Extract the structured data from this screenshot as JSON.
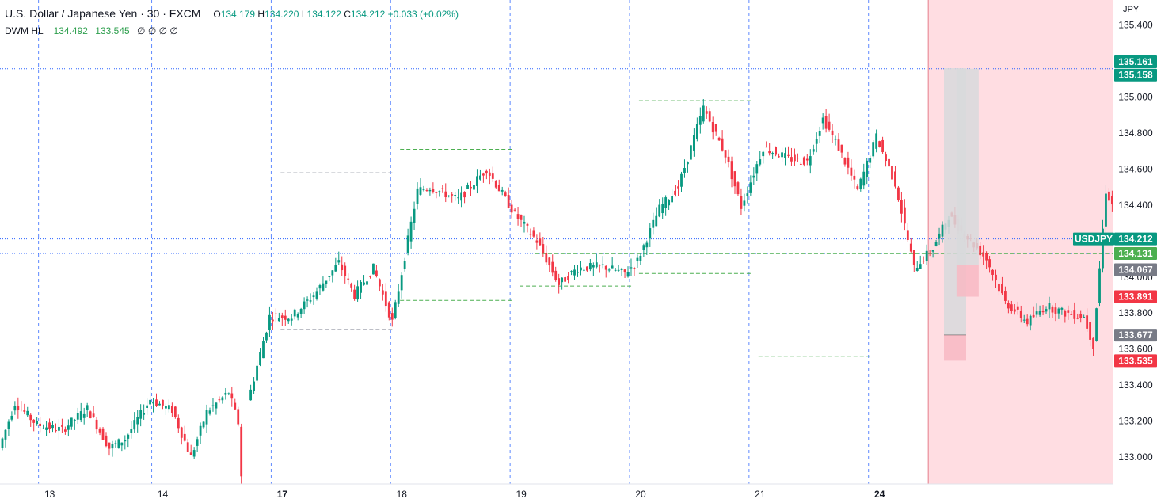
{
  "header": {
    "title": "U.S. Dollar / Japanese Yen · 30 · FXCM",
    "open_label": "O",
    "open": "134.179",
    "high_label": "H",
    "high": "134.220",
    "low_label": "L",
    "low": "134.122",
    "close_label": "C",
    "close": "134.212",
    "change": "+0.033 (+0.02%)"
  },
  "indicator": {
    "name": "DWM HL",
    "value1": "134.492",
    "value2": "133.545",
    "extra": "∅ ∅ ∅ ∅"
  },
  "axis": {
    "unit": "JPY"
  },
  "colors": {
    "up": "#089981",
    "down": "#f23645",
    "grid_v": "#2962ff",
    "level_green": "#4caf50",
    "level_gray": "#b2b5be",
    "zone": "#ffdde2",
    "badge_up": "#089981",
    "badge_down": "#f23645",
    "badge_gray": "#787b86"
  },
  "chart_data": {
    "type": "candlestick",
    "ylim": [
      132.85,
      135.5
    ],
    "y_ticks": [
      "135.400",
      "135.200",
      "135.000",
      "134.800",
      "134.600",
      "134.400",
      "134.200",
      "134.000",
      "133.800",
      "133.600",
      "133.400",
      "133.200",
      "133.000"
    ],
    "y_tick_values": [
      135.4,
      135.2,
      135.0,
      134.8,
      134.6,
      134.4,
      134.2,
      134.0,
      133.8,
      133.6,
      133.4,
      133.2,
      133.0
    ],
    "x_labels": [
      "13",
      "14",
      "17",
      "18",
      "19",
      "20",
      "21",
      "24"
    ],
    "x_label_bold": [
      false,
      false,
      true,
      false,
      false,
      false,
      false,
      true
    ],
    "anchors": [
      {
        "t": 0,
        "v": 133.05
      },
      {
        "t": 5,
        "v": 133.3
      },
      {
        "t": 12,
        "v": 133.18
      },
      {
        "t": 20,
        "v": 133.15
      },
      {
        "t": 28,
        "v": 133.27
      },
      {
        "t": 35,
        "v": 133.05
      },
      {
        "t": 40,
        "v": 133.1
      },
      {
        "t": 48,
        "v": 133.32
      },
      {
        "t": 55,
        "v": 133.26
      },
      {
        "t": 61,
        "v": 133.0
      },
      {
        "t": 66,
        "v": 133.25
      },
      {
        "t": 73,
        "v": 133.36
      },
      {
        "t": 76,
        "v": 133.19
      },
      {
        "t": 77,
        "v": 132.9
      },
      {
        "t": 78,
        "v": 132.9
      },
      {
        "t": 79,
        "v": 133.3
      },
      {
        "t": 86,
        "v": 133.78
      },
      {
        "t": 93,
        "v": 133.78
      },
      {
        "t": 100,
        "v": 133.9
      },
      {
        "t": 108,
        "v": 134.08
      },
      {
        "t": 113,
        "v": 133.9
      },
      {
        "t": 119,
        "v": 134.05
      },
      {
        "t": 125,
        "v": 133.75
      },
      {
        "t": 133,
        "v": 134.48
      },
      {
        "t": 137,
        "v": 134.5
      },
      {
        "t": 146,
        "v": 134.43
      },
      {
        "t": 155,
        "v": 134.6
      },
      {
        "t": 164,
        "v": 134.35
      },
      {
        "t": 171,
        "v": 134.2
      },
      {
        "t": 178,
        "v": 133.96
      },
      {
        "t": 184,
        "v": 134.05
      },
      {
        "t": 192,
        "v": 134.06
      },
      {
        "t": 199,
        "v": 134.02
      },
      {
        "t": 203,
        "v": 134.09
      },
      {
        "t": 210,
        "v": 134.38
      },
      {
        "t": 216,
        "v": 134.5
      },
      {
        "t": 224,
        "v": 134.94
      },
      {
        "t": 231,
        "v": 134.68
      },
      {
        "t": 236,
        "v": 134.39
      },
      {
        "t": 243,
        "v": 134.72
      },
      {
        "t": 251,
        "v": 134.66
      },
      {
        "t": 257,
        "v": 134.64
      },
      {
        "t": 262,
        "v": 134.88
      },
      {
        "t": 267,
        "v": 134.72
      },
      {
        "t": 273,
        "v": 134.48
      },
      {
        "t": 279,
        "v": 134.78
      },
      {
        "t": 285,
        "v": 134.52
      },
      {
        "t": 291,
        "v": 134.05
      },
      {
        "t": 297,
        "v": 134.16
      },
      {
        "t": 302,
        "v": 134.34
      },
      {
        "t": 307,
        "v": 134.24
      },
      {
        "t": 314,
        "v": 134.1
      },
      {
        "t": 320,
        "v": 133.86
      },
      {
        "t": 327,
        "v": 133.75
      },
      {
        "t": 333,
        "v": 133.84
      },
      {
        "t": 339,
        "v": 133.8
      },
      {
        "t": 345,
        "v": 133.78
      },
      {
        "t": 348,
        "v": 133.62
      },
      {
        "t": 352,
        "v": 134.48
      },
      {
        "t": 359,
        "v": 134.2
      },
      {
        "t": 365,
        "v": 134.09
      },
      {
        "t": 370,
        "v": 133.93
      },
      {
        "t": 375,
        "v": 134.1
      },
      {
        "t": 380,
        "v": 134.44
      },
      {
        "t": 386,
        "v": 134.36
      },
      {
        "t": 390,
        "v": 134.2
      }
    ],
    "vgrid_slots": [
      12,
      48,
      86,
      124,
      162,
      200,
      238,
      276
    ],
    "dwm_levels": [
      {
        "from": 89,
        "to": 125,
        "price": 134.58,
        "color": "level_gray"
      },
      {
        "from": 89,
        "to": 125,
        "price": 133.71,
        "color": "level_gray"
      },
      {
        "from": 127,
        "to": 163,
        "price": 134.71,
        "color": "level_green"
      },
      {
        "from": 127,
        "to": 163,
        "price": 133.87,
        "color": "level_green"
      },
      {
        "from": 165,
        "to": 201,
        "price": 135.15,
        "color": "level_green"
      },
      {
        "from": 165,
        "to": 201,
        "price": 133.95,
        "color": "level_green"
      },
      {
        "from": 203,
        "to": 239,
        "price": 134.98,
        "color": "level_green"
      },
      {
        "from": 203,
        "to": 239,
        "price": 134.02,
        "color": "level_green"
      },
      {
        "from": 241,
        "to": 277,
        "price": 134.49,
        "color": "level_green"
      },
      {
        "from": 241,
        "to": 277,
        "price": 133.56,
        "color": "level_green"
      }
    ],
    "price_lines": [
      {
        "price": 135.158,
        "style": "dotted",
        "color": "grid_v"
      },
      {
        "price": 134.212,
        "style": "dotted",
        "color": "grid_v"
      },
      {
        "price": 134.131,
        "style": "dotted",
        "color": "grid_v"
      },
      {
        "price": 134.13,
        "style": "dashed",
        "color": "level_green",
        "from_slot": 170
      }
    ],
    "zone_start_slot": 295,
    "projection_boxes": [
      {
        "slot": 300,
        "top": 135.161,
        "bottom": 133.677,
        "fill": "#d8d9dc",
        "mid": 133.677
      },
      {
        "slot": 304,
        "top": 135.158,
        "bottom": 134.067,
        "fill": "#d8d9dc",
        "mid": 134.067
      },
      {
        "slot": 300,
        "top": 133.677,
        "bottom": 133.535,
        "fill": "#f8b9c3"
      },
      {
        "slot": 304,
        "top": 134.067,
        "bottom": 133.891,
        "fill": "#f8b9c3"
      }
    ],
    "badges": [
      {
        "text": "135.161",
        "price": 135.161,
        "color": "badge_up",
        "offset": -8
      },
      {
        "text": "135.158",
        "price": 135.158,
        "color": "badge_up",
        "offset": 8
      },
      {
        "text": "USDJPY",
        "price": 134.212,
        "color": "badge_up",
        "left": true
      },
      {
        "text": "134.212",
        "price": 134.212,
        "color": "badge_up"
      },
      {
        "text": "134.131",
        "price": 134.131,
        "color": "level_green"
      },
      {
        "text": "134.067",
        "price": 134.067,
        "color": "badge_gray",
        "offset": 6
      },
      {
        "text": "133.891",
        "price": 133.891,
        "color": "badge_down"
      },
      {
        "text": "133.677",
        "price": 133.677,
        "color": "badge_gray"
      },
      {
        "text": "133.535",
        "price": 133.535,
        "color": "badge_down"
      }
    ]
  }
}
